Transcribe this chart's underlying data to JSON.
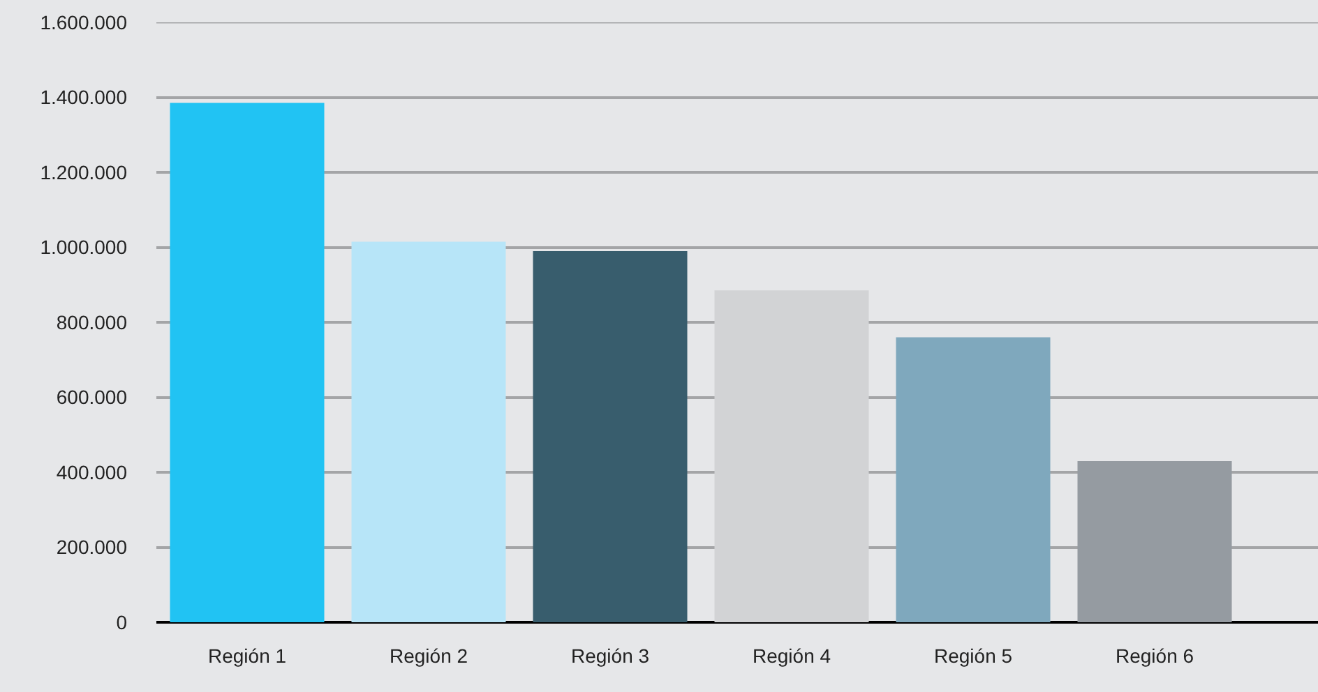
{
  "chart_data": {
    "type": "bar",
    "categories": [
      "Región 1",
      "Región 2",
      "Región 3",
      "Región 4",
      "Región 5",
      "Región 6"
    ],
    "values": [
      1385000,
      1015000,
      990000,
      885000,
      760000,
      430000
    ],
    "colors": [
      "#21c3f3",
      "#b7e5f8",
      "#385d6d",
      "#d2d3d5",
      "#7fa8bd",
      "#959ba1"
    ],
    "ylim": [
      0,
      1600000
    ],
    "yticks": [
      0,
      {
        "value": 200000,
        "label": "200.000"
      },
      {
        "value": 400000,
        "label": "400.000"
      },
      {
        "value": 600000,
        "label": "600.000"
      },
      {
        "value": 800000,
        "label": "800.000"
      },
      {
        "value": 1000000,
        "label": "1.000.000"
      },
      {
        "value": 1200000,
        "label": "1.200.000"
      },
      {
        "value": 1400000,
        "label": "1.400.000"
      },
      {
        "value": 1600000,
        "label": "1.600.000"
      }
    ],
    "grid": "y"
  }
}
